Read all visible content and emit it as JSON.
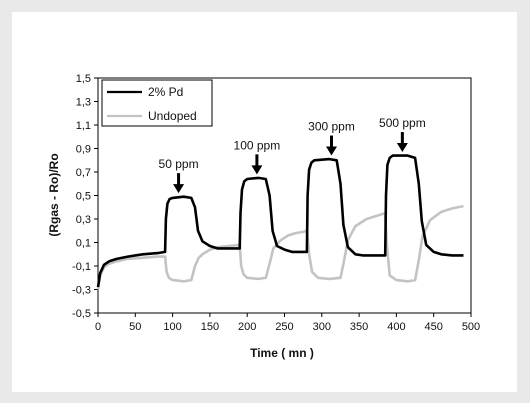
{
  "chart_data": {
    "type": "line",
    "title": "",
    "xlabel": "Time ( mn )",
    "ylabel": "(Rgas - Ro)/Ro",
    "xlim": [
      0,
      500
    ],
    "ylim": [
      -0.5,
      1.5
    ],
    "xticks": [
      "0",
      "50",
      "100",
      "150",
      "200",
      "250",
      "300",
      "350",
      "400",
      "450",
      "500"
    ],
    "yticks": [
      "1,5",
      "1,3",
      "1,1",
      "0,9",
      "0,7",
      "0,5",
      "0,3",
      "0,1",
      "-0,1",
      "-0,3",
      "-0,5"
    ],
    "grid": false,
    "legend": "top-left",
    "series": [
      {
        "name": "2% Pd",
        "color": "#000000",
        "x": [
          0,
          3,
          8,
          15,
          25,
          40,
          60,
          80,
          90,
          91,
          93,
          96,
          100,
          115,
          125,
          130,
          134,
          140,
          150,
          160,
          175,
          190,
          191,
          193,
          196,
          200,
          215,
          225,
          230,
          234,
          240,
          250,
          260,
          275,
          280,
          281,
          283,
          286,
          290,
          310,
          320,
          325,
          329,
          335,
          345,
          355,
          370,
          385,
          386,
          388,
          391,
          395,
          415,
          425,
          430,
          434,
          440,
          450,
          460,
          475,
          490
        ],
        "y": [
          -0.28,
          -0.16,
          -0.09,
          -0.06,
          -0.04,
          -0.02,
          0.0,
          0.01,
          0.02,
          0.3,
          0.43,
          0.47,
          0.48,
          0.49,
          0.48,
          0.4,
          0.2,
          0.11,
          0.07,
          0.05,
          0.05,
          0.05,
          0.35,
          0.55,
          0.62,
          0.64,
          0.65,
          0.64,
          0.5,
          0.2,
          0.07,
          0.04,
          0.02,
          0.02,
          0.02,
          0.5,
          0.72,
          0.78,
          0.8,
          0.81,
          0.8,
          0.6,
          0.25,
          0.06,
          0.0,
          -0.01,
          -0.01,
          -0.01,
          0.5,
          0.76,
          0.82,
          0.84,
          0.84,
          0.82,
          0.6,
          0.28,
          0.08,
          0.02,
          0.0,
          -0.01,
          -0.01
        ]
      },
      {
        "name": "Undoped",
        "color": "#c3c3c3",
        "x": [
          0,
          3,
          8,
          15,
          25,
          40,
          60,
          80,
          90,
          92,
          95,
          100,
          115,
          125,
          130,
          135,
          140,
          150,
          160,
          175,
          190,
          192,
          195,
          200,
          215,
          225,
          230,
          235,
          245,
          255,
          265,
          275,
          280,
          283,
          287,
          295,
          310,
          325,
          330,
          335,
          345,
          360,
          375,
          385,
          387,
          391,
          400,
          415,
          425,
          430,
          435,
          445,
          460,
          475,
          490
        ],
        "y": [
          -0.3,
          -0.18,
          -0.11,
          -0.08,
          -0.06,
          -0.04,
          -0.03,
          -0.02,
          -0.02,
          -0.15,
          -0.2,
          -0.22,
          -0.23,
          -0.22,
          -0.1,
          -0.03,
          0.0,
          0.04,
          0.06,
          0.07,
          0.08,
          -0.1,
          -0.17,
          -0.2,
          -0.21,
          -0.2,
          -0.08,
          0.05,
          0.12,
          0.16,
          0.18,
          0.19,
          0.2,
          0.0,
          -0.15,
          -0.2,
          -0.21,
          -0.2,
          -0.05,
          0.12,
          0.24,
          0.3,
          0.33,
          0.35,
          0.1,
          -0.18,
          -0.22,
          -0.23,
          -0.22,
          -0.05,
          0.15,
          0.29,
          0.36,
          0.39,
          0.41
        ]
      }
    ],
    "annotations": [
      {
        "text": "50 ppm",
        "x": 108,
        "y": 0.52
      },
      {
        "text": "100 ppm",
        "x": 213,
        "y": 0.68
      },
      {
        "text": "300 ppm",
        "x": 313,
        "y": 0.84
      },
      {
        "text": "500 ppm",
        "x": 408,
        "y": 0.87
      }
    ]
  }
}
